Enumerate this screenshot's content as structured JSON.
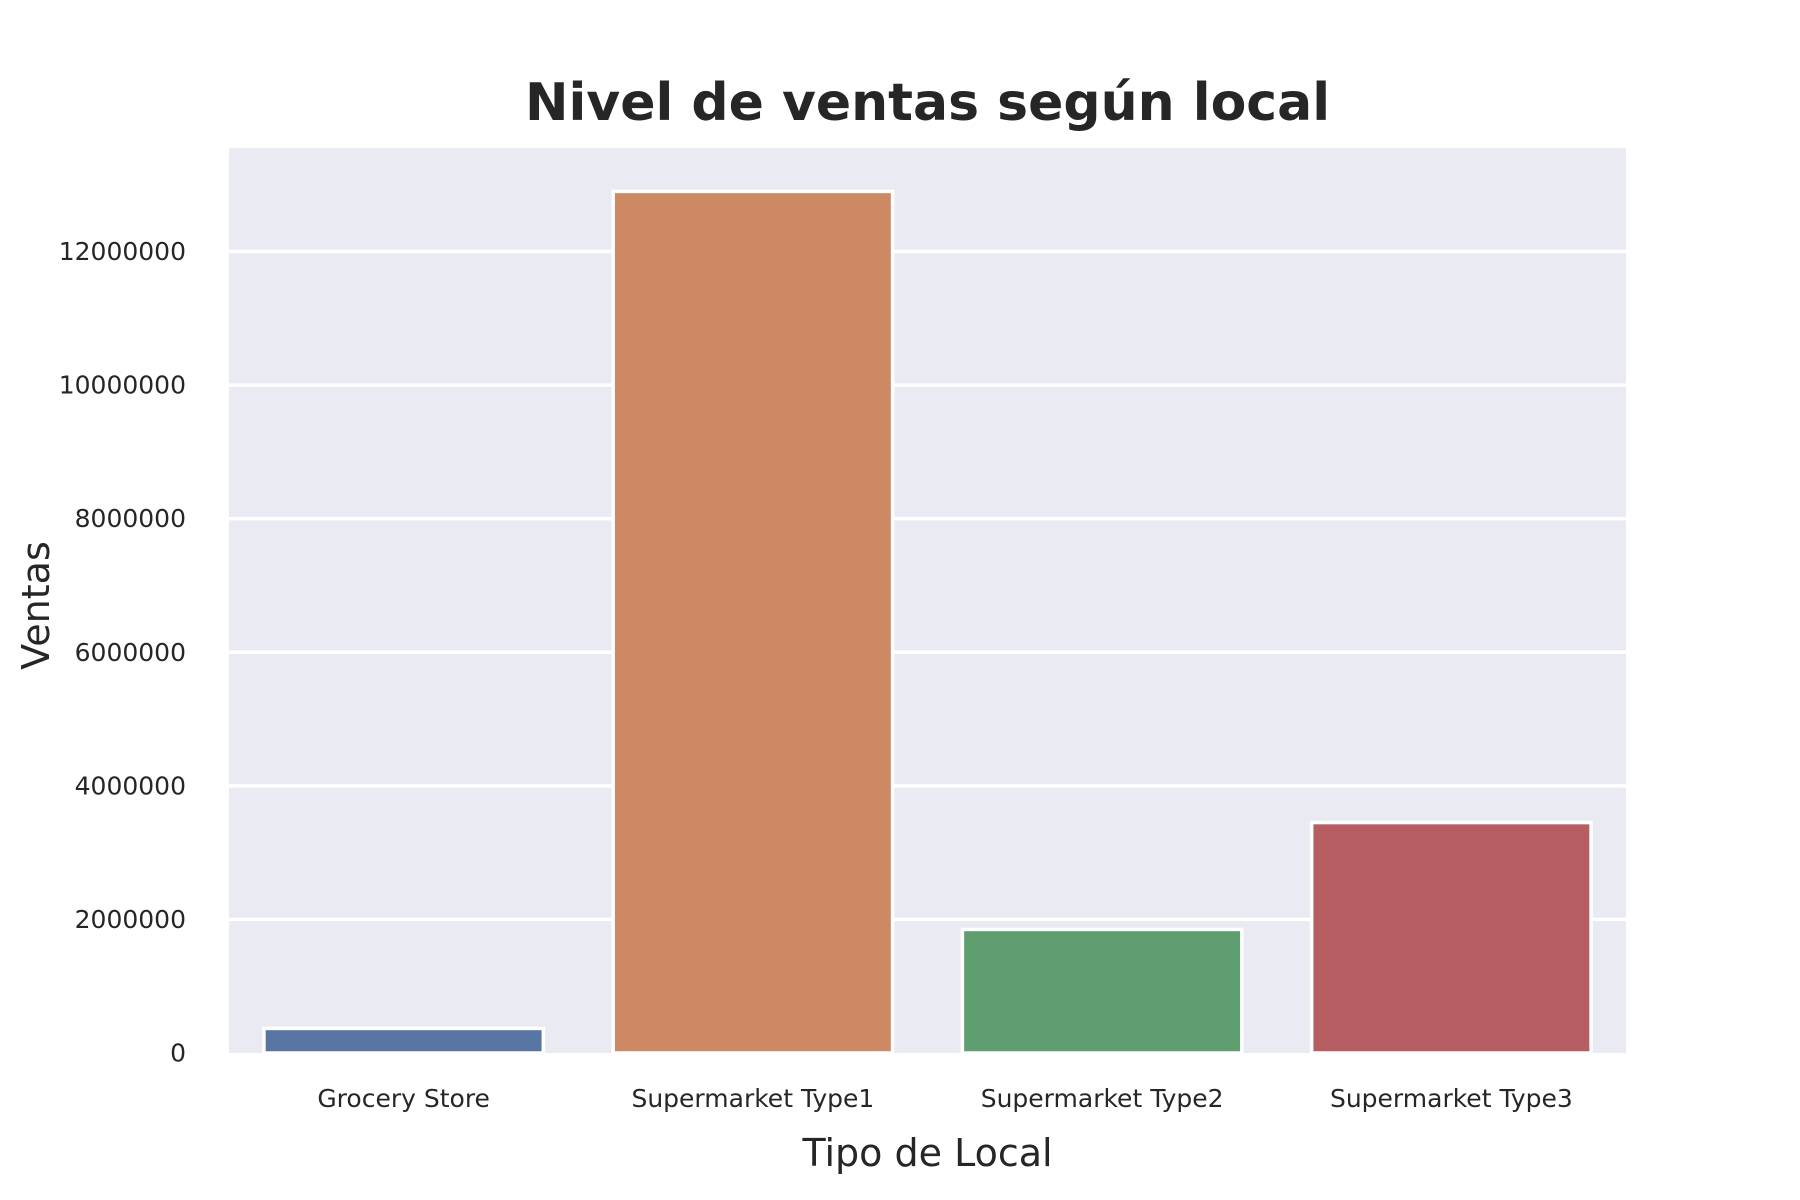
{
  "chart_data": {
    "type": "bar",
    "title": "Nivel de ventas según local",
    "xlabel": "Tipo de Local",
    "ylabel": "Ventas",
    "categories": [
      "Grocery Store",
      "Supermarket Type1",
      "Supermarket Type2",
      "Supermarket Type3"
    ],
    "values": [
      368000,
      12900000,
      1850000,
      3450000
    ],
    "colors": [
      "#5975a4",
      "#cc8963",
      "#5f9e6e",
      "#b55d60"
    ],
    "ylim": [
      0,
      13550000
    ],
    "yticks": [
      0,
      2000000,
      4000000,
      6000000,
      8000000,
      10000000,
      12000000
    ],
    "ytick_labels": [
      "0",
      "2000000",
      "4000000",
      "6000000",
      "8000000",
      "10000000",
      "12000000"
    ],
    "grid": true,
    "background": "#eaeaf2",
    "grid_color": "#ffffff"
  }
}
